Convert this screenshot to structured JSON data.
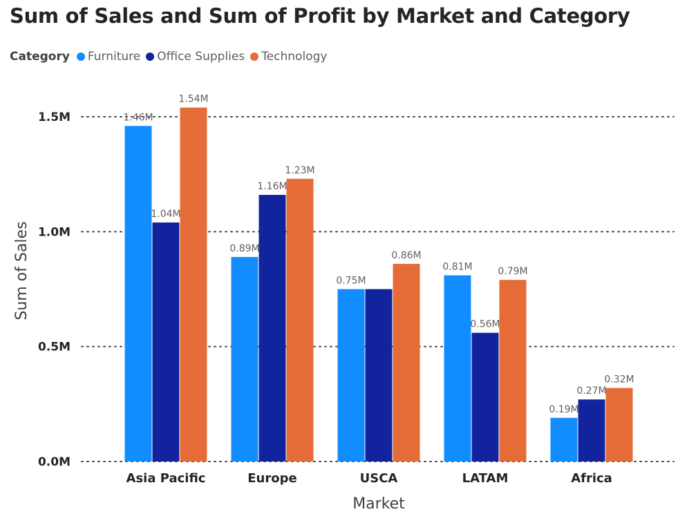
{
  "chart_data": {
    "type": "bar",
    "title": "Sum of Sales and Sum of Profit by Market and Category",
    "legend_title": "Category",
    "legend_position": "top-left",
    "xlabel": "Market",
    "ylabel": "Sum of Sales",
    "categories": [
      "Asia Pacific",
      "Europe",
      "USCA",
      "LATAM",
      "Africa"
    ],
    "series": [
      {
        "name": "Furniture",
        "color": "#118DFF",
        "values": [
          1.46,
          0.89,
          0.75,
          0.81,
          0.19
        ],
        "labels": [
          "1.46M",
          "0.89M",
          "0.75M",
          "0.81M",
          "0.19M"
        ]
      },
      {
        "name": "Office Supplies",
        "color": "#12239E",
        "values": [
          1.04,
          1.16,
          0.75,
          0.56,
          0.27
        ],
        "labels": [
          "1.04M",
          "1.16M",
          "",
          "0.56M",
          "0.27M"
        ]
      },
      {
        "name": "Technology",
        "color": "#E66C37",
        "values": [
          1.54,
          1.23,
          0.86,
          0.79,
          0.32
        ],
        "labels": [
          "1.54M",
          "1.23M",
          "0.86M",
          "0.79M",
          "0.32M"
        ]
      }
    ],
    "yticks": [
      0,
      0.5,
      1.0,
      1.5
    ],
    "ytick_labels": [
      "0.0M",
      "0.5M",
      "1.0M",
      "1.5M"
    ],
    "ylim": [
      0,
      1.5
    ],
    "grid": true,
    "unit": "M"
  }
}
